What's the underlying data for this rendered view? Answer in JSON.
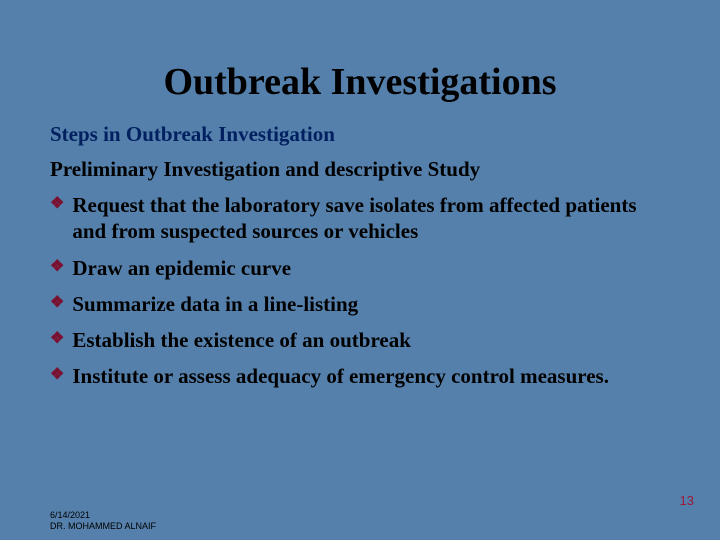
{
  "colors": {
    "background": "#5580ab",
    "title": "#000000",
    "subtitle1": "#002060",
    "body": "#000000",
    "bullet": "#7b1131",
    "slide_number": "#9a1b3a"
  },
  "title": "Outbreak Investigations",
  "subtitle1": "Steps in Outbreak Investigation",
  "subtitle2": "Preliminary Investigation and descriptive Study",
  "bullets": [
    "Request that the laboratory save isolates from affected patients and from suspected sources or vehicles",
    "Draw an epidemic curve",
    "Summarize data in a line-listing",
    "Establish the existence of an outbreak",
    "Institute or assess adequacy of emergency control measures."
  ],
  "slide_number": "13",
  "footer_date": "6/14/2021",
  "footer_author": "DR. MOHAMMED ALNAIF"
}
